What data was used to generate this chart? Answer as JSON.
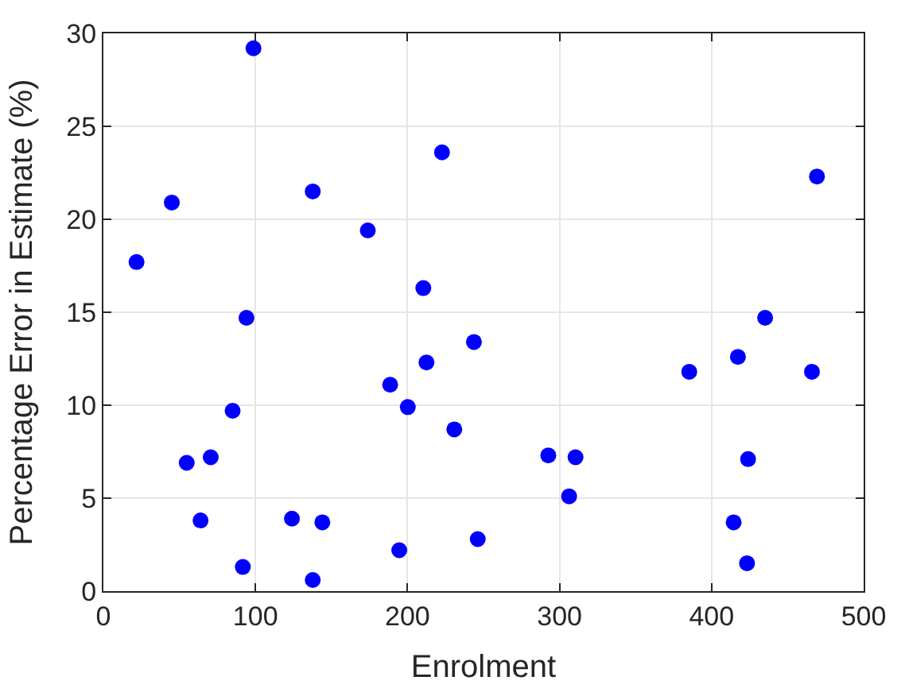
{
  "chart_data": {
    "type": "scatter",
    "xlabel": "Enrolment",
    "ylabel": "Percentage Error in Estimate (%)",
    "x": [
      21.8,
      45,
      98.7,
      137.7,
      173.9,
      210.4,
      94.1,
      212.5,
      188.6,
      85,
      200.2,
      230.8,
      54.8,
      70.6,
      63.9,
      124,
      144,
      194.6,
      91.7,
      137.7,
      222.7,
      469.3,
      243.7,
      435.2,
      417.3,
      385.3,
      466,
      292.6,
      310.5,
      306.3,
      424,
      414.5,
      423.3,
      246.2
    ],
    "series": [
      {
        "color": "#0000ff",
        "values": [
          17.7,
          20.9,
          29.2,
          21.5,
          19.4,
          16.3,
          14.7,
          12.3,
          11.1,
          9.7,
          9.9,
          8.7,
          6.9,
          7.2,
          3.8,
          3.9,
          3.7,
          2.2,
          1.3,
          0.6,
          23.6,
          22.3,
          13.4,
          14.7,
          12.6,
          11.8,
          11.8,
          7.3,
          7.2,
          5.1,
          7.1,
          3.7,
          1.5,
          2.8
        ]
      }
    ],
    "xlim": [
      0,
      500
    ],
    "xticks": [
      0,
      100,
      200,
      300,
      400,
      500
    ],
    "ylim": [
      0,
      30
    ],
    "yticks": [
      0,
      5,
      10,
      15,
      20,
      25,
      30
    ],
    "grid": true,
    "marker": "circle",
    "legend": false
  }
}
